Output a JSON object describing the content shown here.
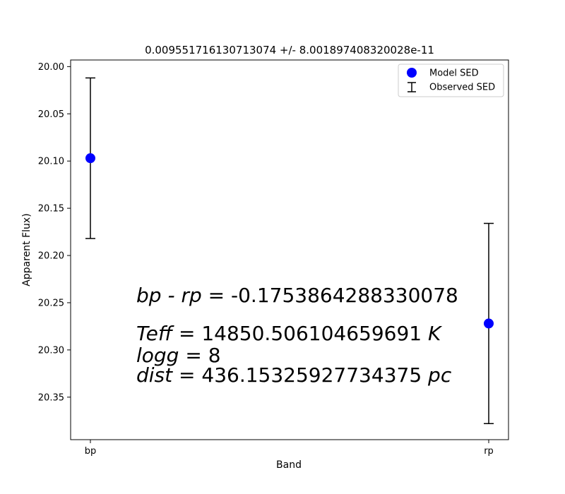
{
  "chart_data": {
    "type": "scatter",
    "title": "0.009551716130713074 +/- 8.001897408320028e-11",
    "xlabel": "Band",
    "ylabel": "Apparent Flux)",
    "categories": [
      "bp",
      "rp"
    ],
    "y_inverted": true,
    "ylim": [
      20.395,
      19.993
    ],
    "yticks": [
      "20.00",
      "20.05",
      "20.10",
      "20.15",
      "20.20",
      "20.25",
      "20.30",
      "20.35"
    ],
    "ytick_values": [
      20.0,
      20.05,
      20.1,
      20.15,
      20.2,
      20.25,
      20.3,
      20.35
    ],
    "grid": false,
    "legend_position": "top-right",
    "series": [
      {
        "name": "Model SED",
        "kind": "marker",
        "color": "#0000ff",
        "values": [
          20.097,
          20.272
        ]
      },
      {
        "name": "Observed SED",
        "kind": "errorbar",
        "color": "#000000",
        "values": [
          20.097,
          20.272
        ],
        "err": [
          0.085,
          0.106
        ]
      }
    ],
    "annotations": [
      {
        "var": "bp - rp",
        "value": "-0.1753864288330078",
        "unit": ""
      },
      {
        "var": "Teff",
        "value": "14850.506104659691",
        "unit": "K"
      },
      {
        "var": "logg",
        "value": "8",
        "unit": ""
      },
      {
        "var": "dist",
        "value": "436.15325927734375",
        "unit": "pc"
      }
    ]
  }
}
